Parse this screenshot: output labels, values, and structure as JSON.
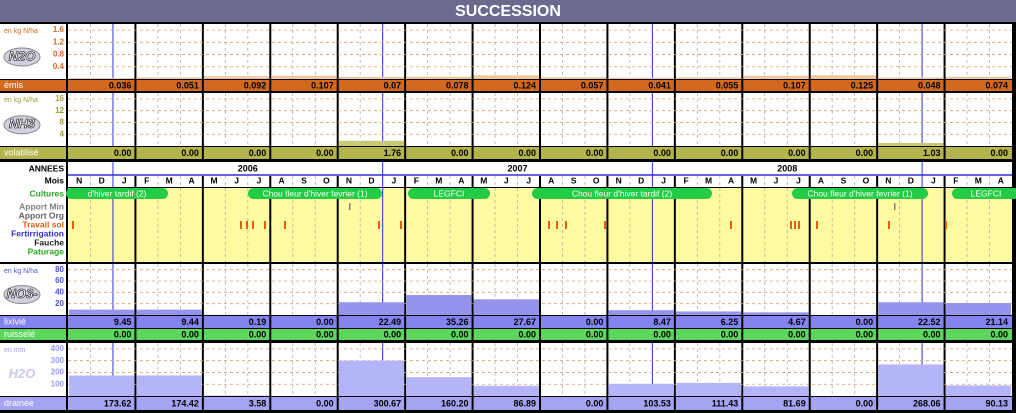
{
  "title": "SUCCESSION",
  "panels": [
    {
      "name": "N2O",
      "unit": "en kg N/ha",
      "label_color": "#d2691e",
      "bar_color": "#f0c8a0",
      "ylim": [
        0,
        1.8
      ],
      "yticks": [
        0.4,
        0.8,
        1.2,
        1.6
      ],
      "rows": [
        {
          "label": "émis",
          "color": "#d2691e",
          "values": [
            0.036,
            0.051,
            0.092,
            0.107,
            0.07,
            0.078,
            0.124,
            0.057,
            0.041,
            0.055,
            0.107,
            0.125,
            0.048,
            0.074
          ]
        }
      ]
    },
    {
      "name": "NH3",
      "unit": "en kg N/ha",
      "label_color": "#a0a030",
      "bar_color": "#c8c878",
      "ylim": [
        0,
        18
      ],
      "yticks": [
        4,
        8,
        12,
        16
      ],
      "rows": [
        {
          "label": "volatilisé",
          "color": "#b4b44c",
          "values": [
            0,
            0,
            0,
            0,
            1.76,
            0,
            0,
            0,
            0,
            0,
            0,
            0,
            1.03,
            0
          ],
          "value_labels": [
            "0.00",
            "0.00",
            "0.00",
            "0.00",
            "1.76",
            "0.00",
            "0.00",
            "0.00",
            "0.00",
            "0.00",
            "0.00",
            "0.00",
            "1.03",
            "0.00"
          ]
        }
      ]
    },
    {
      "name": "NO3-",
      "unit": "en kg N/ha",
      "label_color": "#5050d0",
      "bar_color": "#9494ec",
      "ylim": [
        0,
        90
      ],
      "yticks": [
        20,
        40,
        60,
        80
      ],
      "rows": [
        {
          "label": "lixivié",
          "color": "#8484f0",
          "values": [
            9.45,
            9.44,
            0.19,
            0,
            22.49,
            35.26,
            27.67,
            0,
            8.47,
            6.25,
            4.67,
            0,
            22.52,
            21.14
          ],
          "value_labels": [
            "9.45",
            "9.44",
            "0.19",
            "0.00",
            "22.49",
            "35.26",
            "27.67",
            "0.00",
            "8.47",
            "6.25",
            "4.67",
            "0.00",
            "22.52",
            "21.14"
          ]
        },
        {
          "label": "ruisselé",
          "color": "#5cd65c",
          "values": [
            0,
            0,
            0,
            0,
            0,
            0,
            0,
            0,
            0,
            0,
            0,
            0,
            0,
            0
          ],
          "value_labels": [
            "0.00",
            "0.00",
            "0.00",
            "0.00",
            "0.00",
            "0.00",
            "0.00",
            "0.00",
            "0.00",
            "0.00",
            "0.00",
            "0.00",
            "0.00",
            "0.00"
          ]
        }
      ]
    },
    {
      "name": "H2O",
      "unit": "en mm",
      "label_color": "#9c9cf0",
      "bar_color": "#b4b4f8",
      "ylim": [
        0,
        450
      ],
      "yticks": [
        100,
        200,
        300,
        400
      ],
      "rows": [
        {
          "label": "drainée",
          "color": "#a4a4f2",
          "values": [
            173.62,
            174.42,
            3.58,
            0,
            300.67,
            160.2,
            86.89,
            0,
            103.53,
            111.43,
            81.69,
            0,
            268.06,
            90.13
          ],
          "value_labels": [
            "173.62",
            "174.42",
            "3.58",
            "0.00",
            "300.67",
            "160.20",
            "86.89",
            "0.00",
            "103.53",
            "111.43",
            "81.69",
            "0.00",
            "268.06",
            "90.13"
          ]
        }
      ]
    }
  ],
  "calendar": {
    "row_labels": [
      {
        "text": "ANNEES",
        "color": "#000000"
      },
      {
        "text": "Mois",
        "color": "#000000"
      },
      {
        "text": "Cultures",
        "color": "#22aa22"
      },
      {
        "text": "Apport Min",
        "color": "#808080"
      },
      {
        "text": "Apport Org",
        "color": "#606060"
      },
      {
        "text": "Travail sol",
        "color": "#e06010"
      },
      {
        "text": "Fertirrigation",
        "color": "#3030d0"
      },
      {
        "text": "Fauche",
        "color": "#202020"
      },
      {
        "text": "Paturage",
        "color": "#22aa22"
      }
    ],
    "years": [
      "2006",
      "2007",
      "2008"
    ],
    "months": [
      "N",
      "D",
      "J",
      "F",
      "M",
      "A",
      "M",
      "J",
      "J",
      "A",
      "S",
      "O",
      "N",
      "D",
      "J",
      "F",
      "M",
      "A",
      "M",
      "J",
      "J",
      "A",
      "S",
      "O",
      "N",
      "D",
      "J",
      "F",
      "M",
      "A",
      "M",
      "J",
      "J",
      "A",
      "S",
      "O",
      "N",
      "D",
      "J",
      "F",
      "M",
      "A"
    ],
    "cultures": [
      "d'hiver tardif (2)",
      "Chou fleur d'hiver fevrier (1)",
      "LEGFCI",
      "Chou fleur d'hiver tardif (2)",
      "Chou fleur d'hiver fevrier (1)",
      "LEGFCI"
    ]
  }
}
